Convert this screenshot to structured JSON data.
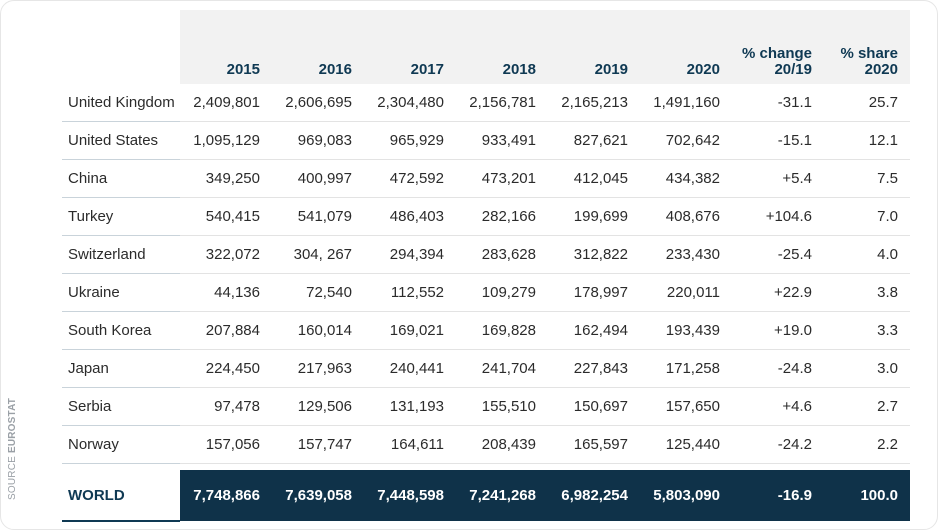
{
  "source": {
    "prefix": "SOURCE",
    "name": "EUROSTAT"
  },
  "chart_data": {
    "type": "table",
    "columns": [
      "",
      "2015",
      "2016",
      "2017",
      "2018",
      "2019",
      "2020",
      "% change 20/19",
      "% share 2020"
    ],
    "header": {
      "years": [
        "2015",
        "2016",
        "2017",
        "2018",
        "2019",
        "2020"
      ],
      "change_line1": "% change",
      "change_line2": "20/19",
      "share_line1": "% share",
      "share_line2": "2020"
    },
    "rows": [
      {
        "country": "United Kingdom",
        "y2015": "2,409,801",
        "y2016": "2,606,695",
        "y2017": "2,304,480",
        "y2018": "2,156,781",
        "y2019": "2,165,213",
        "y2020": "1,491,160",
        "change": "-31.1",
        "share": "25.7"
      },
      {
        "country": "United States",
        "y2015": "1,095,129",
        "y2016": "969,083",
        "y2017": "965,929",
        "y2018": "933,491",
        "y2019": "827,621",
        "y2020": "702,642",
        "change": "-15.1",
        "share": "12.1"
      },
      {
        "country": "China",
        "y2015": "349,250",
        "y2016": "400,997",
        "y2017": "472,592",
        "y2018": "473,201",
        "y2019": "412,045",
        "y2020": "434,382",
        "change": "+5.4",
        "share": "7.5"
      },
      {
        "country": "Turkey",
        "y2015": "540,415",
        "y2016": "541,079",
        "y2017": "486,403",
        "y2018": "282,166",
        "y2019": "199,699",
        "y2020": "408,676",
        "change": "+104.6",
        "share": "7.0"
      },
      {
        "country": "Switzerland",
        "y2015": "322,072",
        "y2016": "304, 267",
        "y2017": "294,394",
        "y2018": "283,628",
        "y2019": "312,822",
        "y2020": "233,430",
        "change": "-25.4",
        "share": "4.0"
      },
      {
        "country": "Ukraine",
        "y2015": "44,136",
        "y2016": "72,540",
        "y2017": "112,552",
        "y2018": "109,279",
        "y2019": "178,997",
        "y2020": "220,011",
        "change": "+22.9",
        "share": "3.8"
      },
      {
        "country": "South Korea",
        "y2015": "207,884",
        "y2016": "160,014",
        "y2017": "169,021",
        "y2018": "169,828",
        "y2019": "162,494",
        "y2020": "193,439",
        "change": "+19.0",
        "share": "3.3"
      },
      {
        "country": "Japan",
        "y2015": "224,450",
        "y2016": "217,963",
        "y2017": "240,441",
        "y2018": "241,704",
        "y2019": "227,843",
        "y2020": "171,258",
        "change": "-24.8",
        "share": "3.0"
      },
      {
        "country": "Serbia",
        "y2015": "97,478",
        "y2016": "129,506",
        "y2017": "131,193",
        "y2018": "155,510",
        "y2019": "150,697",
        "y2020": "157,650",
        "change": "+4.6",
        "share": "2.7"
      },
      {
        "country": "Norway",
        "y2015": "157,056",
        "y2016": "157,747",
        "y2017": "164,611",
        "y2018": "208,439",
        "y2019": "165,597",
        "y2020": "125,440",
        "change": "-24.2",
        "share": "2.2"
      }
    ],
    "total": {
      "country": "WORLD",
      "y2015": "7,748,866",
      "y2016": "7,639,058",
      "y2017": "7,448,598",
      "y2018": "7,241,268",
      "y2019": "6,982,254",
      "y2020": "5,803,090",
      "change": "-16.9",
      "share": "100.0"
    },
    "colors": {
      "header_bg": "#f2f2f2",
      "header_text": "#0f3953",
      "total_bg": "#0f3249",
      "total_text": "#ffffff",
      "body_text": "#2b2b2b"
    }
  }
}
